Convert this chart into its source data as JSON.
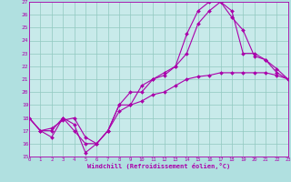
{
  "xlabel": "Windchill (Refroidissement éolien,°C)",
  "bg_color": "#b0e0e0",
  "plot_bg_color": "#c8eaea",
  "grid_color": "#90c8c0",
  "line_color": "#aa00aa",
  "spine_color": "#aa00aa",
  "ylim": [
    15,
    27
  ],
  "xlim": [
    0,
    23
  ],
  "yticks": [
    15,
    16,
    17,
    18,
    19,
    20,
    21,
    22,
    23,
    24,
    25,
    26,
    27
  ],
  "xticks": [
    0,
    1,
    2,
    3,
    4,
    5,
    6,
    7,
    8,
    9,
    10,
    11,
    12,
    13,
    14,
    15,
    16,
    17,
    18,
    19,
    20,
    21,
    22,
    23
  ],
  "curve1_x": [
    0,
    1,
    2,
    3,
    4,
    5,
    6,
    7,
    8,
    9,
    10,
    11,
    12,
    13,
    14,
    15,
    16,
    17,
    18,
    19,
    20,
    21,
    22,
    23
  ],
  "curve1_y": [
    18,
    17,
    16.5,
    18,
    17.5,
    15.3,
    16,
    17,
    19,
    19,
    20.5,
    21,
    21.3,
    22,
    23,
    25.3,
    26.3,
    27,
    25.8,
    24.8,
    22.8,
    22.5,
    21.5,
    21
  ],
  "curve2_x": [
    0,
    1,
    2,
    3,
    4,
    5,
    6,
    7,
    8,
    9,
    10,
    11,
    12,
    13,
    14,
    15,
    16,
    17,
    18,
    19,
    20,
    21,
    22,
    23
  ],
  "curve2_y": [
    18,
    17,
    17,
    18,
    17,
    16,
    16,
    17,
    19,
    20,
    20,
    21,
    21.5,
    22,
    24.5,
    26.3,
    27,
    27,
    26.3,
    23,
    23,
    22.5,
    21.8,
    21
  ],
  "curve3_x": [
    0,
    1,
    2,
    3,
    4,
    5,
    6,
    7,
    8,
    9,
    10,
    11,
    12,
    13,
    14,
    15,
    16,
    17,
    18,
    19,
    20,
    21,
    22,
    23
  ],
  "curve3_y": [
    18,
    17,
    17.2,
    17.8,
    18,
    16.5,
    16,
    17,
    18.5,
    19,
    19.3,
    19.8,
    20,
    20.5,
    21,
    21.2,
    21.3,
    21.5,
    21.5,
    21.5,
    21.5,
    21.5,
    21.3,
    21
  ]
}
